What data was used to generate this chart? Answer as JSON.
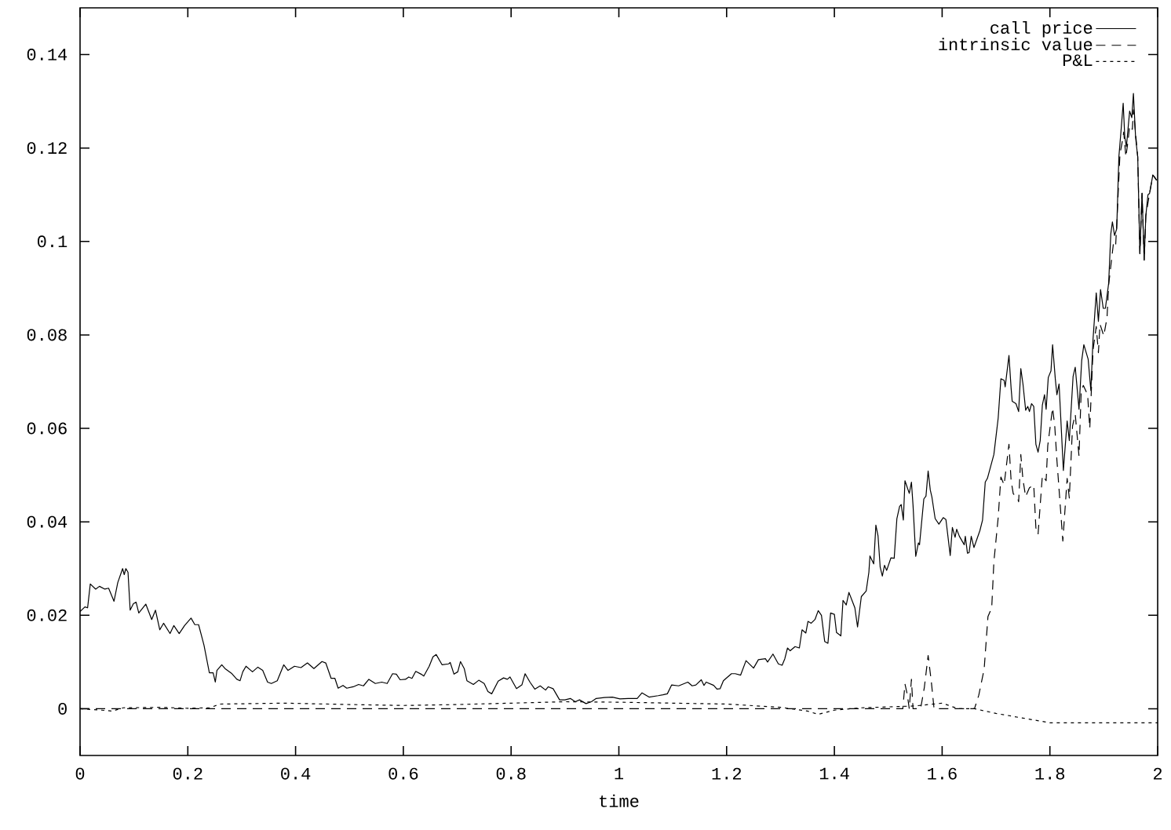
{
  "chart_data": {
    "type": "line",
    "xlabel": "time",
    "xlim": [
      0,
      2
    ],
    "xticks": [
      0,
      0.2,
      0.4,
      0.6,
      0.8,
      1,
      1.2,
      1.4,
      1.6,
      1.8,
      2
    ],
    "ylim": [
      -0.01,
      0.15
    ],
    "yticks": [
      0,
      0.02,
      0.04,
      0.06,
      0.08,
      0.1,
      0.12,
      0.14
    ],
    "legend": "top right",
    "grid": false,
    "series": [
      {
        "name": "call price",
        "color": "#000000",
        "line_style": "solid",
        "x": [
          0,
          0.009,
          0.014,
          0.019,
          0.029,
          0.036,
          0.046,
          0.053,
          0.063,
          0.07,
          0.079,
          0.082,
          0.085,
          0.089,
          0.093,
          0.099,
          0.104,
          0.109,
          0.122,
          0.133,
          0.14,
          0.148,
          0.155,
          0.167,
          0.174,
          0.184,
          0.194,
          0.206,
          0.213,
          0.22,
          0.23,
          0.24,
          0.247,
          0.251,
          0.254,
          0.263,
          0.269,
          0.281,
          0.291,
          0.297,
          0.302,
          0.308,
          0.32,
          0.33,
          0.339,
          0.348,
          0.355,
          0.366,
          0.378,
          0.386,
          0.398,
          0.41,
          0.422,
          0.434,
          0.449,
          0.456,
          0.466,
          0.473,
          0.479,
          0.488,
          0.495,
          0.507,
          0.517,
          0.526,
          0.536,
          0.548,
          0.56,
          0.57,
          0.58,
          0.587,
          0.594,
          0.604,
          0.61,
          0.616,
          0.623,
          0.633,
          0.638,
          0.648,
          0.655,
          0.661,
          0.672,
          0.684,
          0.687,
          0.694,
          0.701,
          0.706,
          0.713,
          0.718,
          0.73,
          0.74,
          0.75,
          0.757,
          0.764,
          0.776,
          0.786,
          0.793,
          0.798,
          0.81,
          0.82,
          0.826,
          0.835,
          0.844,
          0.854,
          0.864,
          0.869,
          0.878,
          0.89,
          0.9,
          0.91,
          0.919,
          0.927,
          0.939,
          0.949,
          0.958,
          0.973,
          0.988,
          1.002,
          1.017,
          1.034,
          1.043,
          1.056,
          1.073,
          1.082,
          1.09,
          1.098,
          1.111,
          1.128,
          1.136,
          1.143,
          1.153,
          1.158,
          1.162,
          1.176,
          1.182,
          1.188,
          1.194,
          1.201,
          1.209,
          1.216,
          1.226,
          1.236,
          1.25,
          1.259,
          1.272,
          1.276,
          1.286,
          1.296,
          1.303,
          1.308,
          1.313,
          1.318,
          1.327,
          1.335,
          1.34,
          1.347,
          1.351,
          1.357,
          1.364,
          1.37,
          1.376,
          1.382,
          1.388,
          1.393,
          1.4,
          1.404,
          1.412,
          1.416,
          1.422,
          1.427,
          1.438,
          1.443,
          1.45,
          1.459,
          1.464,
          1.466,
          1.473,
          1.477,
          1.481,
          1.485,
          1.489,
          1.493,
          1.497,
          1.505,
          1.511,
          1.516,
          1.521,
          1.524,
          1.528,
          1.531,
          1.539,
          1.543,
          1.546,
          1.551,
          1.556,
          1.558,
          1.566,
          1.57,
          1.574,
          1.578,
          1.581,
          1.587,
          1.594,
          1.602,
          1.607,
          1.615,
          1.619,
          1.624,
          1.627,
          1.632,
          1.641,
          1.643,
          1.647,
          1.65,
          1.654,
          1.659,
          1.67,
          1.675,
          1.68,
          1.684,
          1.696,
          1.704,
          1.709,
          1.715,
          1.717,
          1.724,
          1.728,
          1.73,
          1.737,
          1.742,
          1.746,
          1.75,
          1.755,
          1.759,
          1.762,
          1.766,
          1.77,
          1.774,
          1.778,
          1.782,
          1.786,
          1.79,
          1.793,
          1.797,
          1.802,
          1.805,
          1.81,
          1.813,
          1.817,
          1.825,
          1.832,
          1.836,
          1.843,
          1.847,
          1.854,
          1.859,
          1.863,
          1.871,
          1.876,
          1.88,
          1.886,
          1.89,
          1.894,
          1.899,
          1.903,
          1.909,
          1.913,
          1.916,
          1.92,
          1.924,
          1.928,
          1.932,
          1.936,
          1.939,
          1.942,
          1.948,
          1.952,
          1.955,
          1.959,
          1.963,
          1.967,
          1.971,
          1.975,
          1.978,
          1.982,
          1.985,
          1.991,
          1.995,
          1.998
        ],
        "values": [
          0.0208,
          0.0218,
          0.0216,
          0.0267,
          0.0256,
          0.0262,
          0.0256,
          0.0258,
          0.023,
          0.027,
          0.03,
          0.0287,
          0.03,
          0.0292,
          0.0211,
          0.0225,
          0.0228,
          0.0205,
          0.0224,
          0.0191,
          0.0211,
          0.0169,
          0.0183,
          0.0161,
          0.0178,
          0.0161,
          0.0178,
          0.0194,
          0.018,
          0.018,
          0.0136,
          0.0077,
          0.0077,
          0.0057,
          0.0082,
          0.0094,
          0.0086,
          0.0076,
          0.0063,
          0.006,
          0.0079,
          0.0091,
          0.0079,
          0.0089,
          0.0082,
          0.0057,
          0.0054,
          0.006,
          0.0094,
          0.0082,
          0.0091,
          0.0088,
          0.0098,
          0.0086,
          0.0101,
          0.0098,
          0.0065,
          0.0065,
          0.0044,
          0.005,
          0.0044,
          0.0047,
          0.0052,
          0.0049,
          0.0063,
          0.0054,
          0.0057,
          0.0054,
          0.0075,
          0.0074,
          0.0062,
          0.0063,
          0.0068,
          0.0065,
          0.008,
          0.0074,
          0.007,
          0.0091,
          0.0111,
          0.0116,
          0.0094,
          0.0096,
          0.0099,
          0.0074,
          0.0079,
          0.0101,
          0.0086,
          0.006,
          0.0052,
          0.0061,
          0.0054,
          0.0037,
          0.0032,
          0.0059,
          0.0066,
          0.0063,
          0.0068,
          0.0043,
          0.0051,
          0.0075,
          0.0057,
          0.0042,
          0.0049,
          0.004,
          0.0047,
          0.0043,
          0.0019,
          0.0019,
          0.0022,
          0.0015,
          0.0019,
          0.0011,
          0.0015,
          0.0022,
          0.0024,
          0.0025,
          0.0021,
          0.0022,
          0.0022,
          0.0034,
          0.0025,
          0.0028,
          0.003,
          0.0032,
          0.0051,
          0.0049,
          0.0057,
          0.0049,
          0.0051,
          0.0062,
          0.005,
          0.0057,
          0.005,
          0.0042,
          0.0043,
          0.006,
          0.0067,
          0.0075,
          0.0075,
          0.0072,
          0.0103,
          0.0087,
          0.0105,
          0.0107,
          0.01,
          0.0117,
          0.0096,
          0.0093,
          0.0107,
          0.013,
          0.0124,
          0.0133,
          0.013,
          0.0169,
          0.0162,
          0.0187,
          0.0183,
          0.0191,
          0.021,
          0.02,
          0.0144,
          0.014,
          0.0205,
          0.0202,
          0.0163,
          0.0156,
          0.0232,
          0.0222,
          0.0249,
          0.0216,
          0.0175,
          0.024,
          0.0252,
          0.0292,
          0.0327,
          0.031,
          0.0393,
          0.037,
          0.0303,
          0.0284,
          0.0307,
          0.0296,
          0.0323,
          0.0322,
          0.0407,
          0.0433,
          0.0437,
          0.0404,
          0.0488,
          0.0461,
          0.0485,
          0.0435,
          0.0326,
          0.0355,
          0.0351,
          0.0449,
          0.0455,
          0.0509,
          0.0468,
          0.0453,
          0.0407,
          0.0395,
          0.0409,
          0.0405,
          0.0328,
          0.0388,
          0.0367,
          0.0384,
          0.0369,
          0.0351,
          0.0369,
          0.0333,
          0.0334,
          0.0369,
          0.0345,
          0.0381,
          0.0404,
          0.0485,
          0.0493,
          0.0544,
          0.0622,
          0.0706,
          0.0703,
          0.0689,
          0.0756,
          0.0686,
          0.0658,
          0.0653,
          0.0636,
          0.0728,
          0.0695,
          0.0639,
          0.0647,
          0.0636,
          0.0653,
          0.0647,
          0.0566,
          0.0549,
          0.0574,
          0.065,
          0.0672,
          0.0641,
          0.0709,
          0.0723,
          0.0779,
          0.0706,
          0.0672,
          0.0695,
          0.051,
          0.0616,
          0.0574,
          0.0711,
          0.0731,
          0.0641,
          0.0745,
          0.0779,
          0.0748,
          0.0681,
          0.079,
          0.089,
          0.0829,
          0.0897,
          0.0857,
          0.0857,
          0.091,
          0.1016,
          0.1042,
          0.1013,
          0.1027,
          0.1181,
          0.1237,
          0.1296,
          0.1223,
          0.1203,
          0.1279,
          0.1265,
          0.1317,
          0.1223,
          0.1181,
          0.0974,
          0.1103,
          0.096,
          0.1055,
          0.11,
          0.1103,
          0.1142,
          0.1137,
          0.1131
        ]
      },
      {
        "name": "intrinsic value",
        "color": "#000000",
        "line_style": "dashed",
        "x": [
          0,
          1.527,
          1.531,
          1.535,
          1.539,
          1.543,
          1.546,
          1.56,
          1.567,
          1.574,
          1.58,
          1.585,
          1.66,
          1.668,
          1.678,
          1.685,
          1.692,
          1.696,
          1.704,
          1.709,
          1.715,
          1.724,
          1.728,
          1.732,
          1.74,
          1.742,
          1.746,
          1.75,
          1.755,
          1.762,
          1.77,
          1.774,
          1.778,
          1.786,
          1.793,
          1.796,
          1.805,
          1.809,
          1.813,
          1.824,
          1.832,
          1.836,
          1.842,
          1.847,
          1.854,
          1.858,
          1.862,
          1.87,
          1.874,
          1.88,
          1.886,
          1.89,
          1.893,
          1.9,
          1.906,
          1.909,
          1.914,
          1.918,
          1.922,
          1.925,
          1.93,
          1.934,
          1.937,
          1.941,
          1.945,
          1.948,
          1.953,
          1.955,
          1.963,
          1.967,
          1.971,
          1.975,
          1.978,
          1.985,
          1.991,
          1.998
        ],
        "values": [
          0,
          0,
          0.0053,
          0.0032,
          0,
          0.0063,
          0,
          0,
          0.0046,
          0.0114,
          0.0057,
          0,
          0,
          0.0029,
          0.0085,
          0.0197,
          0.0216,
          0.0314,
          0.0409,
          0.0496,
          0.0479,
          0.0566,
          0.0488,
          0.046,
          0.0451,
          0.0443,
          0.0544,
          0.049,
          0.0454,
          0.0473,
          0.0479,
          0.0387,
          0.0373,
          0.0499,
          0.0488,
          0.0563,
          0.0644,
          0.0605,
          0.0532,
          0.0359,
          0.0493,
          0.0451,
          0.0605,
          0.063,
          0.0541,
          0.0678,
          0.0692,
          0.0672,
          0.06,
          0.0767,
          0.0818,
          0.0762,
          0.0823,
          0.0798,
          0.0837,
          0.0907,
          0.0957,
          0.0997,
          0.0991,
          0.1058,
          0.1187,
          0.1212,
          0.1234,
          0.1181,
          0.1215,
          0.1248,
          0.124,
          0.1282,
          0.1181,
          0.0974,
          0.1103,
          0.096,
          0.1055,
          0.1103,
          0.1142,
          0.1131
        ]
      },
      {
        "name": "P&L",
        "color": "#000000",
        "line_style": "dotted",
        "x": [
          0,
          0.04,
          0.06,
          0.08,
          0.15,
          0.2,
          0.24,
          0.26,
          0.38,
          0.5,
          0.6,
          0.7,
          0.8,
          0.9,
          1.0,
          1.1,
          1.2,
          1.3,
          1.35,
          1.37,
          1.4,
          1.45,
          1.55,
          1.6,
          1.63,
          1.66,
          1.7,
          1.75,
          1.8,
          2.0
        ],
        "values": [
          0,
          -0.0003,
          -0.0005,
          0.0002,
          0.0003,
          0.0001,
          0.0002,
          0.001,
          0.0012,
          0.0009,
          0.0007,
          0.0009,
          0.0012,
          0.0015,
          0.0014,
          0.0012,
          0.001,
          0.0003,
          -0.0005,
          -0.0012,
          -0.0003,
          0.0002,
          0.0006,
          0.0012,
          0,
          0,
          -0.001,
          -0.002,
          -0.003,
          -0.003
        ]
      }
    ]
  }
}
